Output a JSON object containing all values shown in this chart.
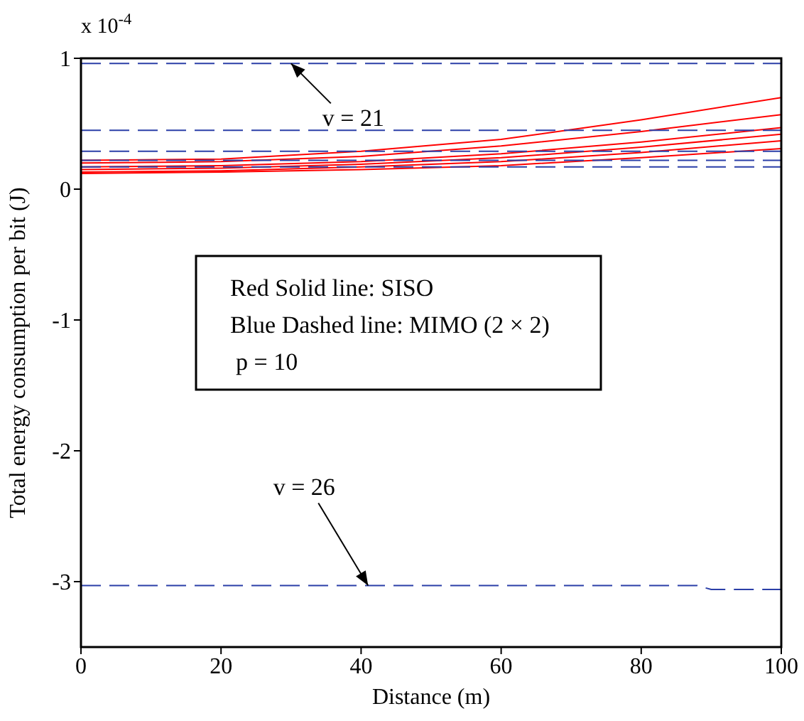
{
  "chart_data": {
    "type": "line",
    "xlabel": "Distance (m)",
    "ylabel": "Total energy consumption per bit (J)",
    "x": [
      0,
      20,
      40,
      60,
      80,
      100
    ],
    "xlim": [
      0,
      100
    ],
    "xticks": [
      0,
      20,
      40,
      60,
      80,
      100
    ],
    "ylim": [
      -3.5,
      1
    ],
    "yticks": [
      -3,
      -2,
      -1,
      0,
      1
    ],
    "grid": false,
    "legend": false,
    "marker": "none",
    "series": [
      {
        "color": "#ff0000",
        "line_style": "solid",
        "values": [
          0.22,
          0.23,
          0.29,
          0.38,
          0.53,
          0.7
        ]
      },
      {
        "color": "#ff0000",
        "line_style": "solid",
        "values": [
          0.2,
          0.21,
          0.25,
          0.33,
          0.44,
          0.57
        ]
      },
      {
        "color": "#ff0000",
        "line_style": "solid",
        "values": [
          0.17,
          0.18,
          0.21,
          0.27,
          0.36,
          0.47
        ]
      },
      {
        "color": "#ff0000",
        "line_style": "solid",
        "values": [
          0.15,
          0.16,
          0.19,
          0.24,
          0.32,
          0.42
        ]
      },
      {
        "color": "#ff0000",
        "line_style": "solid",
        "values": [
          0.13,
          0.14,
          0.17,
          0.21,
          0.28,
          0.37
        ]
      },
      {
        "color": "#ff0000",
        "line_style": "solid",
        "values": [
          0.12,
          0.13,
          0.15,
          0.18,
          0.24,
          0.31
        ]
      },
      {
        "color": "#2b3fa8",
        "line_style": "dashed",
        "values": [
          0.96,
          0.96,
          0.96,
          0.96,
          0.96,
          0.96
        ]
      },
      {
        "color": "#2b3fa8",
        "line_style": "dashed",
        "values": [
          0.45,
          0.45,
          0.45,
          0.45,
          0.45,
          0.45
        ]
      },
      {
        "color": "#2b3fa8",
        "line_style": "dashed",
        "values": [
          0.29,
          0.29,
          0.29,
          0.29,
          0.29,
          0.29
        ]
      },
      {
        "color": "#2b3fa8",
        "line_style": "dashed",
        "values": [
          0.22,
          0.22,
          0.22,
          0.22,
          0.22,
          0.22
        ]
      },
      {
        "color": "#2b3fa8",
        "line_style": "dashed",
        "values": [
          0.17,
          0.17,
          0.17,
          0.17,
          0.17,
          0.17
        ]
      },
      {
        "color": "#2b3fa8",
        "line_style": "dashed",
        "x": [
          0,
          88,
          90,
          100
        ],
        "values": [
          -3.03,
          -3.03,
          -3.06,
          -3.06
        ]
      }
    ],
    "annotations": [
      "x 10$^{-4}$",
      "Red Solid line:  SISO",
      "Blue Dashed line: MIMO (2 × 2)",
      "p = 10",
      {
        "text": "v = 21",
        "x": 30,
        "y": 0.96
      },
      {
        "text": "v = 26",
        "x": 41,
        "y": -3.03
      }
    ]
  }
}
